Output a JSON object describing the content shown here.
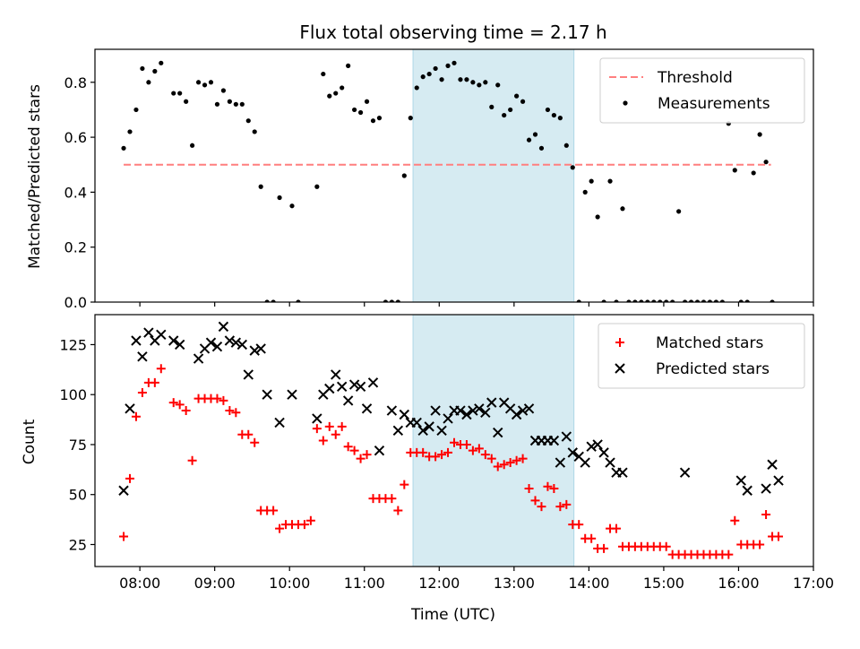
{
  "figure_title": "Flux total observing time = 2.17 h",
  "chart_data": [
    {
      "type": "scatter",
      "ylabel": "Matched/Predicted stars",
      "ylim": [
        0,
        0.92
      ],
      "yticks": [
        0.0,
        0.2,
        0.4,
        0.6,
        0.8
      ],
      "ytick_labels": [
        "0.0",
        "0.2",
        "0.4",
        "0.6",
        "0.8"
      ],
      "xlim": [
        "07:24",
        "17:00"
      ],
      "highlight": {
        "from": "11:39",
        "to": "13:48",
        "color": "#add8e6"
      },
      "legend_position": "top-right",
      "threshold": {
        "name": "Threshold",
        "value": 0.5,
        "from": "07:47",
        "to": "16:26",
        "color": "#ff7f7f"
      },
      "series": [
        {
          "name": "Measurements",
          "color": "#000000",
          "x": [
            "07:47",
            "07:52",
            "07:57",
            "08:02",
            "08:07",
            "08:12",
            "08:17",
            "08:27",
            "08:32",
            "08:37",
            "08:42",
            "08:47",
            "08:52",
            "08:57",
            "09:02",
            "09:07",
            "09:12",
            "09:17",
            "09:22",
            "09:27",
            "09:32",
            "09:37",
            "09:42",
            "09:47",
            "09:52",
            "10:02",
            "10:07",
            "10:22",
            "10:27",
            "10:32",
            "10:37",
            "10:42",
            "10:47",
            "10:52",
            "10:57",
            "11:02",
            "11:07",
            "11:12",
            "11:17",
            "11:22",
            "11:27",
            "11:32",
            "11:37",
            "11:42",
            "11:47",
            "11:52",
            "11:57",
            "12:02",
            "12:07",
            "12:12",
            "12:17",
            "12:22",
            "12:27",
            "12:32",
            "12:37",
            "12:42",
            "12:47",
            "12:52",
            "12:57",
            "13:02",
            "13:07",
            "13:12",
            "13:17",
            "13:22",
            "13:27",
            "13:32",
            "13:37",
            "13:42",
            "13:47",
            "13:52",
            "13:57",
            "14:02",
            "14:07",
            "14:12",
            "14:17",
            "14:22",
            "14:27",
            "14:32",
            "14:37",
            "14:42",
            "14:47",
            "14:52",
            "14:57",
            "15:02",
            "15:07",
            "15:12",
            "15:17",
            "15:22",
            "15:27",
            "15:32",
            "15:37",
            "15:42",
            "15:47",
            "15:52",
            "15:57",
            "16:02",
            "16:07",
            "16:12",
            "16:17",
            "16:22",
            "16:27"
          ],
          "y": [
            0.56,
            0.62,
            0.7,
            0.85,
            0.8,
            0.84,
            0.87,
            0.76,
            0.76,
            0.73,
            0.57,
            0.8,
            0.79,
            0.8,
            0.72,
            0.77,
            0.73,
            0.72,
            0.72,
            0.66,
            0.62,
            0.42,
            0.0,
            0.0,
            0.38,
            0.35,
            0.0,
            0.42,
            0.83,
            0.75,
            0.76,
            0.78,
            0.86,
            0.7,
            0.69,
            0.73,
            0.66,
            0.67,
            0.0,
            0.0,
            0.0,
            0.46,
            0.67,
            0.78,
            0.82,
            0.83,
            0.85,
            0.81,
            0.86,
            0.87,
            0.81,
            0.81,
            0.8,
            0.79,
            0.8,
            0.71,
            0.79,
            0.68,
            0.7,
            0.75,
            0.73,
            0.59,
            0.61,
            0.56,
            0.7,
            0.68,
            0.67,
            0.57,
            0.49,
            0.0,
            0.4,
            0.44,
            0.31,
            0.0,
            0.44,
            0.0,
            0.34,
            0.0,
            0.0,
            0.0,
            0.0,
            0.0,
            0.0,
            0.0,
            0.0,
            0.33,
            0.0,
            0.0,
            0.0,
            0.0,
            0.0,
            0.0,
            0.0,
            0.65,
            0.48,
            0.0,
            0.0,
            0.47,
            0.61,
            0.51,
            0.0
          ]
        }
      ]
    },
    {
      "type": "scatter",
      "xlabel": "Time (UTC)",
      "ylabel": "Count",
      "ylim": [
        14,
        140
      ],
      "yticks": [
        25,
        50,
        75,
        100,
        125
      ],
      "ytick_labels": [
        "25",
        "50",
        "75",
        "100",
        "125"
      ],
      "xlim": [
        "07:24",
        "17:00"
      ],
      "xticks": [
        "08:00",
        "09:00",
        "10:00",
        "11:00",
        "12:00",
        "13:00",
        "14:00",
        "15:00",
        "16:00",
        "17:00"
      ],
      "highlight": {
        "from": "11:39",
        "to": "13:48",
        "color": "#add8e6"
      },
      "legend_position": "top-right",
      "series": [
        {
          "name": "Matched stars",
          "color": "#ff0000",
          "marker": "+",
          "x": [
            "07:47",
            "07:52",
            "07:57",
            "08:02",
            "08:07",
            "08:12",
            "08:17",
            "08:27",
            "08:32",
            "08:37",
            "08:42",
            "08:47",
            "08:52",
            "08:57",
            "09:02",
            "09:07",
            "09:12",
            "09:17",
            "09:22",
            "09:27",
            "09:32",
            "09:37",
            "09:42",
            "09:47",
            "09:52",
            "09:57",
            "10:02",
            "10:07",
            "10:12",
            "10:17",
            "10:22",
            "10:27",
            "10:32",
            "10:37",
            "10:42",
            "10:47",
            "10:52",
            "10:57",
            "11:02",
            "11:07",
            "11:12",
            "11:17",
            "11:22",
            "11:27",
            "11:32",
            "11:37",
            "11:42",
            "11:47",
            "11:52",
            "11:57",
            "12:02",
            "12:07",
            "12:12",
            "12:17",
            "12:22",
            "12:27",
            "12:32",
            "12:37",
            "12:42",
            "12:47",
            "12:52",
            "12:57",
            "13:02",
            "13:07",
            "13:12",
            "13:17",
            "13:22",
            "13:27",
            "13:32",
            "13:37",
            "13:42",
            "13:47",
            "13:52",
            "13:57",
            "14:02",
            "14:07",
            "14:12",
            "14:17",
            "14:22",
            "14:27",
            "14:32",
            "14:37",
            "14:42",
            "14:47",
            "14:52",
            "14:57",
            "15:02",
            "15:07",
            "15:12",
            "15:17",
            "15:22",
            "15:27",
            "15:32",
            "15:37",
            "15:42",
            "15:47",
            "15:52",
            "15:57",
            "16:02",
            "16:07",
            "16:12",
            "16:17",
            "16:22",
            "16:27",
            "16:32"
          ],
          "y": [
            29,
            58,
            89,
            101,
            106,
            106,
            113,
            96,
            95,
            92,
            67,
            98,
            98,
            98,
            98,
            97,
            92,
            91,
            80,
            80,
            76,
            42,
            42,
            42,
            33,
            35,
            35,
            35,
            35,
            37,
            83,
            77,
            84,
            80,
            84,
            74,
            72,
            68,
            70,
            48,
            48,
            48,
            48,
            42,
            55,
            71,
            71,
            71,
            69,
            69,
            70,
            71,
            76,
            75,
            75,
            72,
            73,
            70,
            68,
            64,
            65,
            66,
            67,
            68,
            53,
            47,
            44,
            54,
            53,
            44,
            45,
            35,
            35,
            28,
            28,
            23,
            23,
            33,
            33,
            24,
            24,
            24,
            24,
            24,
            24,
            24,
            24,
            20,
            20,
            20,
            20,
            20,
            20,
            20,
            20,
            20,
            20,
            37,
            25,
            25,
            25,
            25,
            40,
            29,
            29
          ]
        },
        {
          "name": "Predicted stars",
          "color": "#000000",
          "marker": "x",
          "x": [
            "07:47",
            "07:52",
            "07:57",
            "08:02",
            "08:07",
            "08:12",
            "08:17",
            "08:27",
            "08:32",
            "08:47",
            "08:52",
            "08:57",
            "09:02",
            "09:07",
            "09:12",
            "09:17",
            "09:22",
            "09:27",
            "09:32",
            "09:37",
            "09:42",
            "09:52",
            "10:02",
            "10:22",
            "10:27",
            "10:32",
            "10:37",
            "10:42",
            "10:47",
            "10:52",
            "10:57",
            "11:02",
            "11:07",
            "11:12",
            "11:22",
            "11:27",
            "11:32",
            "11:37",
            "11:42",
            "11:47",
            "11:52",
            "11:57",
            "12:02",
            "12:07",
            "12:12",
            "12:17",
            "12:22",
            "12:27",
            "12:32",
            "12:37",
            "12:42",
            "12:47",
            "12:52",
            "12:57",
            "13:02",
            "13:07",
            "13:12",
            "13:17",
            "13:22",
            "13:27",
            "13:32",
            "13:37",
            "13:42",
            "13:47",
            "13:52",
            "13:57",
            "14:02",
            "14:07",
            "14:12",
            "14:17",
            "14:22",
            "14:27",
            "15:17",
            "16:02",
            "16:07",
            "16:22",
            "16:27",
            "16:32"
          ],
          "y": [
            52,
            93,
            127,
            119,
            131,
            127,
            130,
            127,
            125,
            118,
            123,
            126,
            124,
            134,
            127,
            126,
            125,
            110,
            122,
            123,
            100,
            86,
            100,
            88,
            100,
            103,
            110,
            104,
            97,
            105,
            104,
            93,
            106,
            72,
            92,
            82,
            90,
            86,
            86,
            82,
            84,
            92,
            82,
            88,
            92,
            92,
            90,
            92,
            93,
            91,
            96,
            81,
            96,
            93,
            90,
            92,
            93,
            77,
            77,
            77,
            77,
            66,
            79,
            71,
            69,
            66,
            74,
            75,
            71,
            66,
            61,
            61,
            61,
            57,
            52,
            53,
            65,
            57
          ]
        }
      ]
    }
  ]
}
